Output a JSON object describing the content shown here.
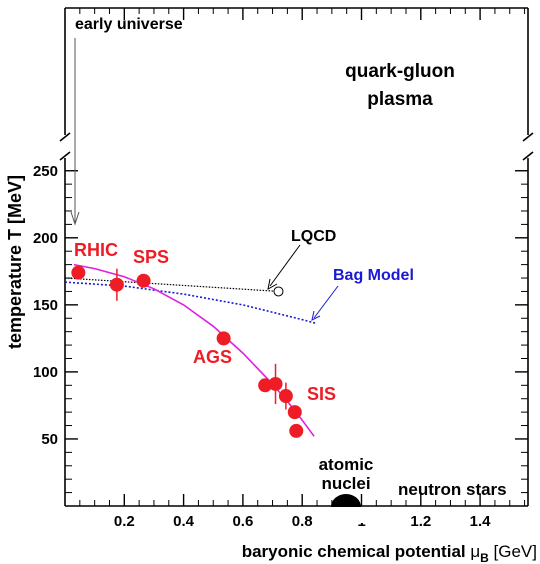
{
  "chart_data": {
    "type": "scatter",
    "title": "",
    "xlabel_main": "baryonic chemical potential ",
    "xlabel_mu": "μ",
    "xlabel_sub": "B",
    "xlabel_unit": " [GeV]",
    "ylabel": "temperature T [MeV]",
    "xlim": [
      0.0,
      1.6
    ],
    "ylim": [
      0,
      250
    ],
    "x_ticks": [
      {
        "v": 0.2,
        "label": "0.2"
      },
      {
        "v": 0.4,
        "label": "0.4"
      },
      {
        "v": 0.6,
        "label": "0.6"
      },
      {
        "v": 0.8,
        "label": "0.8"
      },
      {
        "v": 1.0,
        "label": "1"
      },
      {
        "v": 1.2,
        "label": "1.2"
      },
      {
        "v": 1.4,
        "label": "1.4"
      }
    ],
    "y_ticks": [
      {
        "v": 50,
        "label": "50"
      },
      {
        "v": 100,
        "label": "100"
      },
      {
        "v": 150,
        "label": "150"
      },
      {
        "v": 200,
        "label": "200"
      },
      {
        "v": 250,
        "label": "250"
      }
    ],
    "points": [
      {
        "x": 0.045,
        "y": 174,
        "yerr": 4
      },
      {
        "x": 0.175,
        "y": 165,
        "yerr": 12
      },
      {
        "x": 0.265,
        "y": 168,
        "yerr": 5
      },
      {
        "x": 0.535,
        "y": 125,
        "yerr": 3
      },
      {
        "x": 0.675,
        "y": 90,
        "yerr": 4
      },
      {
        "x": 0.71,
        "y": 91,
        "yerr": 15
      },
      {
        "x": 0.745,
        "y": 82,
        "yerr": 10
      },
      {
        "x": 0.775,
        "y": 70,
        "yerr": 4
      },
      {
        "x": 0.78,
        "y": 56,
        "yerr": 2
      }
    ],
    "freezeout_curve": [
      [
        0.03,
        180
      ],
      [
        0.1,
        177
      ],
      [
        0.2,
        171
      ],
      [
        0.3,
        162
      ],
      [
        0.4,
        150
      ],
      [
        0.5,
        134
      ],
      [
        0.6,
        114
      ],
      [
        0.7,
        91
      ],
      [
        0.75,
        78
      ],
      [
        0.8,
        64
      ],
      [
        0.84,
        52
      ]
    ],
    "lqcd_line": [
      [
        0.0,
        170
      ],
      [
        0.72,
        160
      ]
    ],
    "lqcd_point": {
      "x": 0.72,
      "y": 160
    },
    "bag_model_curve": [
      [
        0.0,
        167
      ],
      [
        0.2,
        164
      ],
      [
        0.4,
        158
      ],
      [
        0.6,
        150
      ],
      [
        0.8,
        139
      ],
      [
        0.85,
        136
      ]
    ],
    "colors": {
      "points": "#ee1c25",
      "freezeout": "#e020e0",
      "bag_model": "#1a1ad6",
      "lqcd": "#000000",
      "axes": "#000000"
    },
    "annotations": {
      "early_universe": "early universe",
      "qgp_line1": "quark-gluon",
      "qgp_line2": "plasma",
      "lqcd": "LQCD",
      "bag_model": "Bag Model",
      "rhic": "RHIC",
      "sps": "SPS",
      "ags": "AGS",
      "sis": "SIS",
      "atomic_line1": "atomic",
      "atomic_line2": "nuclei",
      "neutron_stars": "neutron stars"
    }
  }
}
